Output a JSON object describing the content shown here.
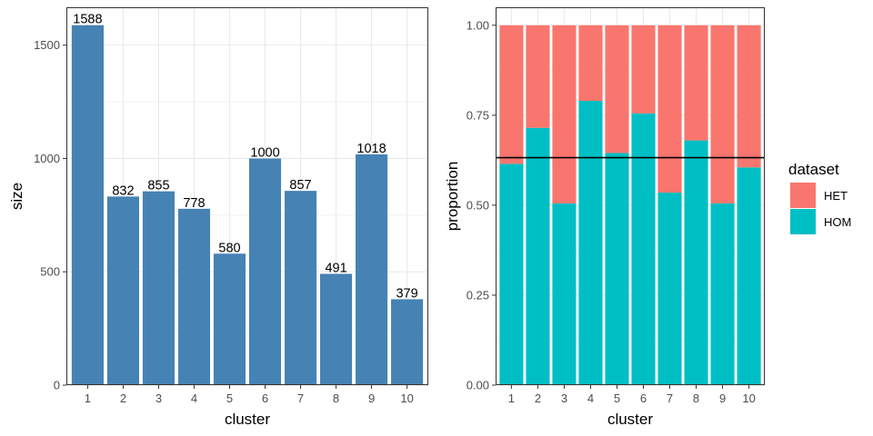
{
  "chart_data": [
    {
      "type": "bar",
      "xlabel": "cluster",
      "ylabel": "size",
      "categories": [
        "1",
        "2",
        "3",
        "4",
        "5",
        "6",
        "7",
        "8",
        "9",
        "10"
      ],
      "values": [
        1588,
        832,
        855,
        778,
        580,
        1000,
        857,
        491,
        1018,
        379
      ],
      "data_labels": [
        "1588",
        "832",
        "855",
        "778",
        "580",
        "1000",
        "857",
        "491",
        "1018",
        "379"
      ],
      "ylim": [
        0,
        1667
      ],
      "yticks": [
        0,
        500,
        1000,
        1500
      ],
      "ytick_labels": [
        "0",
        "500",
        "1000",
        "1500"
      ],
      "bar_color": "#4682B4",
      "grid": true
    },
    {
      "type": "bar",
      "stacked": true,
      "xlabel": "cluster",
      "ylabel": "proportion",
      "categories": [
        "1",
        "2",
        "3",
        "4",
        "5",
        "6",
        "7",
        "8",
        "9",
        "10"
      ],
      "series": [
        {
          "name": "HOM",
          "color": "#00BFC4",
          "values": [
            0.615,
            0.715,
            0.505,
            0.79,
            0.645,
            0.755,
            0.535,
            0.68,
            0.505,
            0.605
          ]
        },
        {
          "name": "HET",
          "color": "#F8766D",
          "values": [
            0.385,
            0.285,
            0.495,
            0.21,
            0.355,
            0.245,
            0.465,
            0.32,
            0.495,
            0.395
          ]
        }
      ],
      "hline": 0.632,
      "ylim": [
        0,
        1.05
      ],
      "yticks": [
        0,
        0.25,
        0.5,
        0.75,
        1.0
      ],
      "ytick_labels": [
        "0.00",
        "0.25",
        "0.50",
        "0.75",
        "1.00"
      ],
      "grid": true
    }
  ],
  "legend": {
    "title": "dataset",
    "items": [
      {
        "label": "HET",
        "color": "#F8766D"
      },
      {
        "label": "HOM",
        "color": "#00BFC4"
      }
    ]
  }
}
